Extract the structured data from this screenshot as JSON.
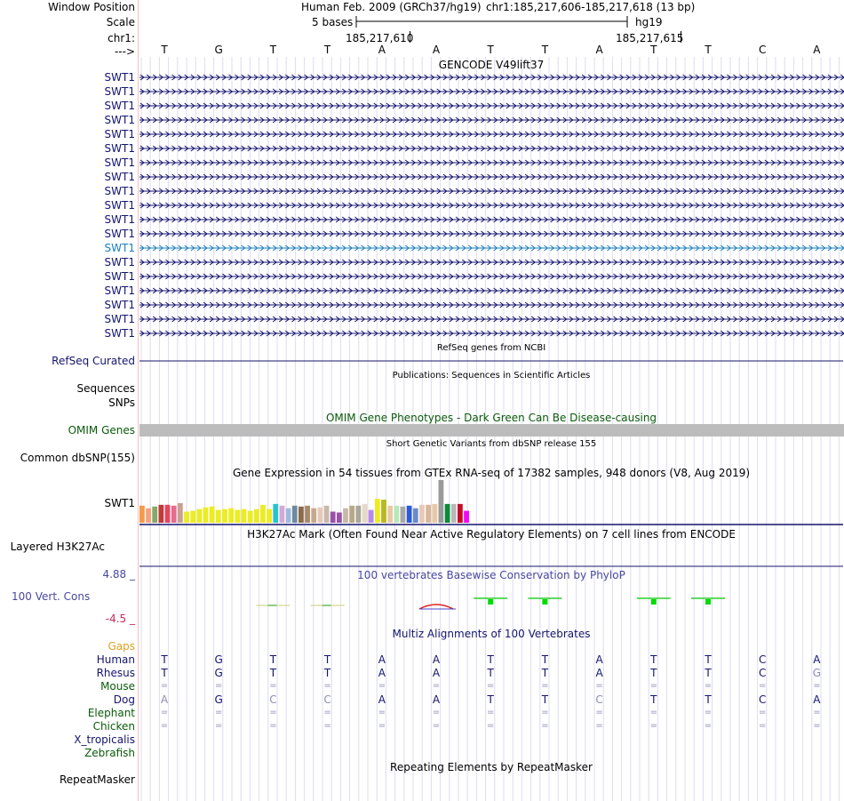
{
  "header": {
    "window_position_label": "Window Position",
    "scale_label": "Scale",
    "chr_label": "chr1:",
    "arrow_label": "--->",
    "assembly": "Human Feb. 2009 (GRCh37/hg19)",
    "position": "chr1:185,217,606-185,217,618 (13 bp)",
    "scale_text": "5 bases",
    "db": "hg19",
    "coord_left": "185,217,610",
    "coord_right": "185,217,615"
  },
  "sequence": [
    "T",
    "G",
    "T",
    "T",
    "A",
    "A",
    "T",
    "T",
    "A",
    "T",
    "T",
    "C",
    "A"
  ],
  "gencode": {
    "title": "GENCODE V49lift37",
    "rows": [
      "SWT1",
      "SWT1",
      "SWT1",
      "SWT1",
      "SWT1",
      "SWT1",
      "SWT1",
      "SWT1",
      "SWT1",
      "SWT1",
      "SWT1",
      "SWT1",
      "SWT1",
      "SWT1",
      "SWT1",
      "SWT1",
      "SWT1",
      "SWT1",
      "SWT1"
    ],
    "color_primary": "#14146e",
    "color_alt": "#1a7fbf"
  },
  "refseq": {
    "title": "RefSeq genes from NCBI",
    "label": "RefSeq Curated",
    "color": "#14146e"
  },
  "publications": {
    "title": "Publications: Sequences in Scientific Articles",
    "label_seq": "Sequences",
    "label_snp": "SNPs"
  },
  "omim": {
    "title": "OMIM Gene Phenotypes - Dark Green Can Be Disease-causing",
    "label": "OMIM Genes",
    "color": "#0a5a0a"
  },
  "dbsnp": {
    "title": "Short Genetic Variants from dbSNP release 155",
    "label": "Common dbSNP(155)"
  },
  "gtex": {
    "title": "Gene Expression in 54 tissues from GTEx RNA-seq of 17382 samples, 948 donors (V8, Aug 2019)",
    "label": "SWT1",
    "bars": [
      {
        "h": 0.4,
        "c": "#f39b4a"
      },
      {
        "h": 0.34,
        "c": "#f2a37a"
      },
      {
        "h": 0.38,
        "c": "#86a86a"
      },
      {
        "h": 0.42,
        "c": "#c13a3a"
      },
      {
        "h": 0.42,
        "c": "#e8445e"
      },
      {
        "h": 0.4,
        "c": "#e86a8c"
      },
      {
        "h": 0.46,
        "c": "#c8a28e"
      },
      {
        "h": 0.26,
        "c": "#ecec24"
      },
      {
        "h": 0.28,
        "c": "#ecec24"
      },
      {
        "h": 0.32,
        "c": "#ecec24"
      },
      {
        "h": 0.36,
        "c": "#ecec24"
      },
      {
        "h": 0.38,
        "c": "#ecec24"
      },
      {
        "h": 0.3,
        "c": "#ecec24"
      },
      {
        "h": 0.32,
        "c": "#ecec24"
      },
      {
        "h": 0.34,
        "c": "#ecec24"
      },
      {
        "h": 0.3,
        "c": "#ecec24"
      },
      {
        "h": 0.32,
        "c": "#ecec24"
      },
      {
        "h": 0.28,
        "c": "#ecec24"
      },
      {
        "h": 0.32,
        "c": "#ecec24"
      },
      {
        "h": 0.42,
        "c": "#ecec24"
      },
      {
        "h": 0.32,
        "c": "#ecec24"
      },
      {
        "h": 0.44,
        "c": "#28c4cc"
      },
      {
        "h": 0.4,
        "c": "#d6a8d6"
      },
      {
        "h": 0.34,
        "c": "#9ebadc"
      },
      {
        "h": 0.4,
        "c": "#6e8a9e"
      },
      {
        "h": 0.38,
        "c": "#8a6a4a"
      },
      {
        "h": 0.4,
        "c": "#a88a6a"
      },
      {
        "h": 0.34,
        "c": "#c8a88a"
      },
      {
        "h": 0.36,
        "c": "#e8c8b8"
      },
      {
        "h": 0.4,
        "c": "#c8b8a8"
      },
      {
        "h": 0.26,
        "c": "#9a52a8"
      },
      {
        "h": 0.24,
        "c": "#9a52a8"
      },
      {
        "h": 0.34,
        "c": "#c8b8a8"
      },
      {
        "h": 0.4,
        "c": "#b8a888"
      },
      {
        "h": 0.4,
        "c": "#a8a898"
      },
      {
        "h": 0.44,
        "c": "#e8d8c8"
      },
      {
        "h": 0.3,
        "c": "#b88aec"
      },
      {
        "h": 0.56,
        "c": "#ecec24"
      },
      {
        "h": 0.54,
        "c": "#b8b820"
      },
      {
        "h": 0.4,
        "c": "#e8c8a8"
      },
      {
        "h": 0.4,
        "c": "#b8e8b8"
      },
      {
        "h": 0.38,
        "c": "#a8a8a8"
      },
      {
        "h": 0.4,
        "c": "#2c5ad8"
      },
      {
        "h": 0.34,
        "c": "#6a8ac8"
      },
      {
        "h": 0.42,
        "c": "#e8c8b8"
      },
      {
        "h": 0.42,
        "c": "#d8b898"
      },
      {
        "h": 0.44,
        "c": "#e8c8a8"
      },
      {
        "h": 1.0,
        "c": "#9a9a9a"
      },
      {
        "h": 0.44,
        "c": "#0a8a3a"
      },
      {
        "h": 0.44,
        "c": "#b8b8b8"
      },
      {
        "h": 0.44,
        "c": "#c80a2a"
      },
      {
        "h": 0.28,
        "c": "#f00afa"
      }
    ]
  },
  "h3k27ac": {
    "title": "H3K27Ac Mark (Often Found Near Active Regulatory Elements) on 7 cell lines from ENCODE",
    "label": "Layered H3K27Ac"
  },
  "phylop": {
    "title": "100 vertebrates Basewise Conservation by PhyloP",
    "label": "100 Vert. Cons",
    "ymax_label": "4.88 _",
    "ymin_label": "-4.5 _",
    "label_color": "#4848a0",
    "scores": [
      0,
      0,
      -0.1,
      -0.2,
      0,
      -0.6,
      0.6,
      0.6,
      0,
      0.6,
      0.6,
      0,
      0
    ]
  },
  "multiz": {
    "title": "Multiz Alignments of 100 Vertebrates",
    "gaps_label": "Gaps",
    "species": [
      {
        "name": "Human",
        "color": "#14146e",
        "bases": [
          "T",
          "G",
          "T",
          "T",
          "A",
          "A",
          "T",
          "T",
          "A",
          "T",
          "T",
          "C",
          "A"
        ],
        "faint": []
      },
      {
        "name": "Rhesus",
        "color": "#14146e",
        "bases": [
          "T",
          "G",
          "T",
          "T",
          "A",
          "A",
          "T",
          "T",
          "A",
          "T",
          "T",
          "C",
          "G"
        ],
        "faint": [
          12
        ]
      },
      {
        "name": "Mouse",
        "color": "#0a5a0a",
        "bases": [
          "=",
          "=",
          "=",
          "=",
          "=",
          "=",
          "=",
          "=",
          "=",
          "=",
          "=",
          "=",
          "="
        ],
        "faint": []
      },
      {
        "name": "Dog",
        "color": "#14146e",
        "bases": [
          "A",
          "G",
          "C",
          "C",
          "A",
          "A",
          "T",
          "T",
          "C",
          "T",
          "T",
          "C",
          "A"
        ],
        "faint": [
          0,
          2,
          3,
          8
        ]
      },
      {
        "name": "Elephant",
        "color": "#0a5a0a",
        "bases": [
          "=",
          "=",
          "=",
          "=",
          "=",
          "=",
          "=",
          "=",
          "=",
          "=",
          "=",
          "=",
          "="
        ],
        "faint": []
      },
      {
        "name": "Chicken",
        "color": "#0a5a0a",
        "bases": [
          "=",
          "=",
          "=",
          "=",
          "=",
          "=",
          "=",
          "=",
          "=",
          "=",
          "=",
          "=",
          "="
        ],
        "faint": []
      },
      {
        "name": "X_tropicalis",
        "color": "#14146e",
        "bases": [],
        "faint": []
      },
      {
        "name": "Zebrafish",
        "color": "#0a5a0a",
        "bases": [],
        "faint": []
      }
    ]
  },
  "repeatmasker": {
    "title": "Repeating Elements by RepeatMasker",
    "label": "RepeatMasker"
  }
}
